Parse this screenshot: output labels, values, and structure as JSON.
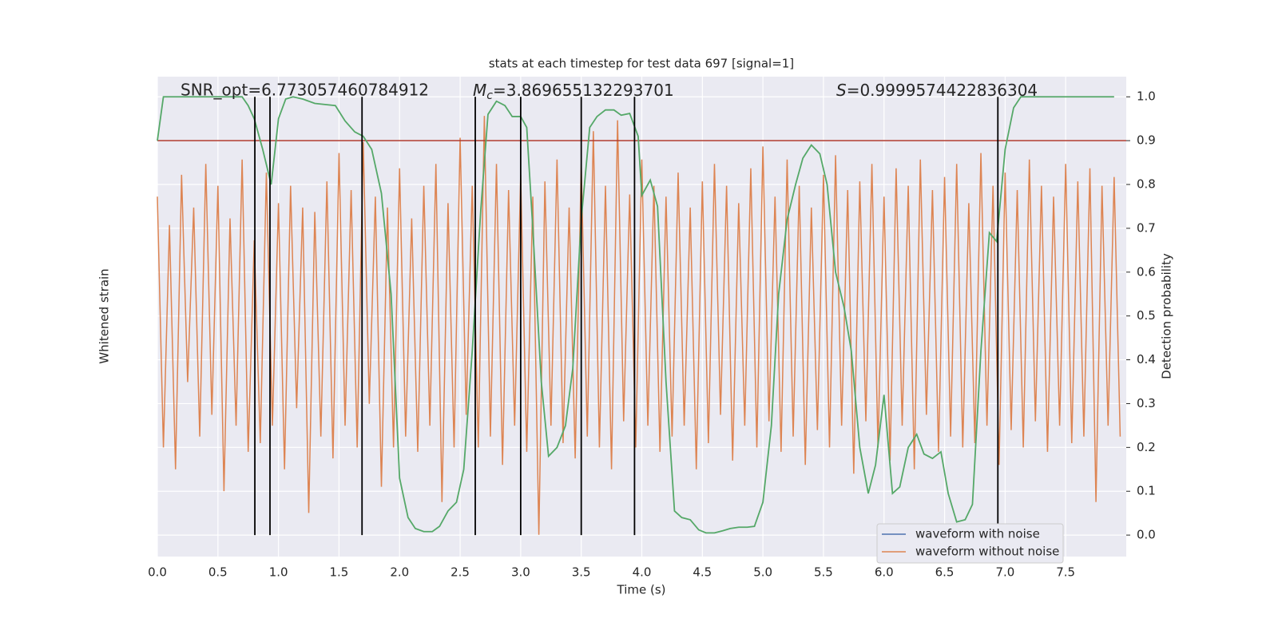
{
  "chart_data": {
    "type": "line",
    "title": "stats at each timestep for test data 697 [signal=1]",
    "x_label": "Time (s)",
    "y_label": "Whitened strain",
    "y2_label": "Detection probability",
    "annotations": {
      "snr": "SNR_opt=6.773057460784912",
      "mc": {
        "symbol": "M",
        "subscript": "c",
        "text": "=3.869655132293701"
      },
      "s": {
        "symbol": "S",
        "text": "=0.9999574422836304"
      }
    },
    "xlim": [
      0,
      8
    ],
    "xticks": [
      {
        "value": 0,
        "label": "0.0"
      },
      {
        "value": 0.5,
        "label": "0.5"
      },
      {
        "value": 1,
        "label": "1.0"
      },
      {
        "value": 1.5,
        "label": "1.5"
      },
      {
        "value": 2,
        "label": "2.0"
      },
      {
        "value": 2.5,
        "label": "2.5"
      },
      {
        "value": 3,
        "label": "3.0"
      },
      {
        "value": 3.5,
        "label": "3.5"
      },
      {
        "value": 4,
        "label": "4.0"
      },
      {
        "value": 4.5,
        "label": "4.5"
      },
      {
        "value": 5,
        "label": "5.0"
      },
      {
        "value": 5.5,
        "label": "5.5"
      },
      {
        "value": 6,
        "label": "6.0"
      },
      {
        "value": 6.5,
        "label": "6.5"
      },
      {
        "value": 7,
        "label": "7.0"
      },
      {
        "value": 7.5,
        "label": "7.5"
      }
    ],
    "ylim": [
      -1.1,
      1.1
    ],
    "y2lim": [
      -0.049,
      1.046
    ],
    "y2ticks": [
      {
        "value": 0,
        "label": "0.0"
      },
      {
        "value": 0.1,
        "label": "0.1"
      },
      {
        "value": 0.2,
        "label": "0.2"
      },
      {
        "value": 0.3,
        "label": "0.3"
      },
      {
        "value": 0.4,
        "label": "0.4"
      },
      {
        "value": 0.5,
        "label": "0.5"
      },
      {
        "value": 0.6,
        "label": "0.6"
      },
      {
        "value": 0.7,
        "label": "0.7"
      },
      {
        "value": 0.8,
        "label": "0.8"
      },
      {
        "value": 0.9,
        "label": "0.9"
      },
      {
        "value": 1,
        "label": "1.0"
      }
    ],
    "grid": true,
    "legend": "lower right",
    "series": [
      {
        "name": "waveform with noise",
        "color": "#4c72b0"
      },
      {
        "name": "waveform without noise",
        "color": "#dd8452",
        "x": [
          0,
          0.05,
          0.1,
          0.15,
          0.2,
          0.25,
          0.3,
          0.35,
          0.4,
          0.45,
          0.5,
          0.55,
          0.6,
          0.65,
          0.7,
          0.75,
          0.8,
          0.85,
          0.9,
          0.95,
          1,
          1.05,
          1.1,
          1.15,
          1.2,
          1.25,
          1.3,
          1.35,
          1.4,
          1.45,
          1.5,
          1.55,
          1.6,
          1.65,
          1.7,
          1.75,
          1.8,
          1.85,
          1.9,
          1.95,
          2,
          2.05,
          2.1,
          2.15,
          2.2,
          2.25,
          2.3,
          2.35,
          2.4,
          2.45,
          2.5,
          2.55,
          2.6,
          2.65,
          2.7,
          2.75,
          2.8,
          2.85,
          2.9,
          2.95,
          3,
          3.05,
          3.1,
          3.15,
          3.2,
          3.25,
          3.3,
          3.35,
          3.4,
          3.45,
          3.5,
          3.55,
          3.6,
          3.65,
          3.7,
          3.75,
          3.8,
          3.85,
          3.9,
          3.95,
          4,
          4.05,
          4.1,
          4.15,
          4.2,
          4.25,
          4.3,
          4.35,
          4.4,
          4.45,
          4.5,
          4.55,
          4.6,
          4.65,
          4.7,
          4.75,
          4.8,
          4.85,
          4.9,
          4.95,
          5,
          5.05,
          5.1,
          5.15,
          5.2,
          5.25,
          5.3,
          5.35,
          5.4,
          5.45,
          5.5,
          5.55,
          5.6,
          5.65,
          5.7,
          5.75,
          5.8,
          5.85,
          5.9,
          5.95,
          6,
          6.05,
          6.1,
          6.15,
          6.2,
          6.25,
          6.3,
          6.35,
          6.4,
          6.45,
          6.5,
          6.55,
          6.6,
          6.65,
          6.7,
          6.75,
          6.8,
          6.85,
          6.9,
          6.95,
          7,
          7.05,
          7.1,
          7.15,
          7.2,
          7.25,
          7.3,
          7.35,
          7.4,
          7.45,
          7.5,
          7.55,
          7.6,
          7.65,
          7.7,
          7.75,
          7.8,
          7.85,
          7.9,
          7.95
        ],
        "values": [
          0.55,
          -0.6,
          0.42,
          -0.7,
          0.65,
          -0.3,
          0.5,
          -0.55,
          0.7,
          -0.45,
          0.6,
          -0.8,
          0.45,
          -0.5,
          0.72,
          -0.62,
          0.35,
          -0.58,
          0.66,
          -0.5,
          0.52,
          -0.7,
          0.6,
          -0.42,
          0.5,
          -0.9,
          0.48,
          -0.55,
          0.62,
          -0.65,
          0.75,
          -0.5,
          0.58,
          -0.6,
          0.8,
          -0.4,
          0.55,
          -0.78,
          0.5,
          -0.6,
          0.68,
          -0.55,
          0.45,
          -0.62,
          0.6,
          -0.5,
          0.7,
          -0.85,
          0.52,
          -0.6,
          0.82,
          -0.45,
          0.6,
          -0.6,
          0.92,
          -0.55,
          0.7,
          -0.68,
          0.58,
          -0.5,
          0.65,
          -0.62,
          0.55,
          -1.0,
          0.62,
          -0.5,
          0.72,
          -0.58,
          0.5,
          -0.65,
          0.7,
          -0.55,
          0.85,
          -0.6,
          0.6,
          -0.7,
          0.9,
          -0.48,
          0.56,
          -0.6,
          0.72,
          -0.5,
          0.6,
          -0.62,
          0.55,
          -0.55,
          0.66,
          -0.5,
          0.5,
          -0.7,
          0.62,
          -0.58,
          0.7,
          -0.45,
          0.6,
          -0.66,
          0.52,
          -0.5,
          0.68,
          -0.6,
          0.78,
          -0.48,
          0.55,
          -0.62,
          0.72,
          -0.55,
          0.6,
          -0.68,
          0.5,
          -0.52,
          0.65,
          -0.6,
          0.74,
          -0.5,
          0.58,
          -0.72,
          0.62,
          -0.48,
          0.7,
          -0.6,
          0.55,
          -0.66,
          0.68,
          -0.5,
          0.6,
          -0.7,
          0.72,
          -0.45,
          0.58,
          -0.62,
          0.64,
          -0.55,
          0.7,
          -0.6,
          0.52,
          -0.58,
          0.75,
          -0.5,
          0.6,
          -0.68,
          0.66,
          -0.52,
          0.58,
          -0.6,
          0.72,
          -0.48,
          0.6,
          -0.62,
          0.55,
          -0.5,
          0.7,
          -0.58,
          0.62,
          -0.55,
          0.68,
          -0.85,
          0.6,
          -0.5,
          0.64,
          -0.55
        ]
      }
    ],
    "probability": {
      "color": "#55a868",
      "axis": "y2",
      "x": [
        0,
        0.05,
        0.1,
        0.2,
        0.3,
        0.4,
        0.5,
        0.6,
        0.7,
        0.75,
        0.8,
        0.87,
        0.94,
        1.0,
        1.06,
        1.12,
        1.2,
        1.3,
        1.4,
        1.47,
        1.55,
        1.63,
        1.7,
        1.77,
        1.85,
        1.93,
        2.0,
        2.07,
        2.13,
        2.2,
        2.27,
        2.33,
        2.4,
        2.47,
        2.53,
        2.6,
        2.67,
        2.73,
        2.8,
        2.87,
        2.93,
        3.0,
        3.05,
        3.1,
        3.17,
        3.23,
        3.3,
        3.37,
        3.43,
        3.5,
        3.57,
        3.63,
        3.7,
        3.77,
        3.83,
        3.9,
        3.97,
        4.0,
        4.07,
        4.13,
        4.2,
        4.27,
        4.33,
        4.4,
        4.47,
        4.53,
        4.6,
        4.67,
        4.73,
        4.8,
        4.87,
        4.93,
        5.0,
        5.07,
        5.13,
        5.2,
        5.27,
        5.33,
        5.4,
        5.47,
        5.53,
        5.6,
        5.67,
        5.73,
        5.8,
        5.87,
        5.93,
        6.0,
        6.07,
        6.13,
        6.2,
        6.27,
        6.33,
        6.4,
        6.47,
        6.53,
        6.6,
        6.67,
        6.73,
        6.8,
        6.87,
        6.93,
        7.0,
        7.07,
        7.13,
        7.2,
        7.9
      ],
      "values": [
        0.9,
        1.0,
        1.0,
        1.0,
        1.0,
        1.0,
        1.0,
        1.0,
        1.0,
        0.98,
        0.95,
        0.88,
        0.8,
        0.95,
        0.995,
        1.0,
        0.995,
        0.985,
        0.982,
        0.98,
        0.945,
        0.92,
        0.91,
        0.88,
        0.78,
        0.55,
        0.13,
        0.04,
        0.015,
        0.008,
        0.008,
        0.02,
        0.055,
        0.075,
        0.15,
        0.42,
        0.74,
        0.96,
        0.99,
        0.98,
        0.955,
        0.955,
        0.93,
        0.7,
        0.35,
        0.18,
        0.2,
        0.25,
        0.38,
        0.72,
        0.93,
        0.955,
        0.97,
        0.97,
        0.958,
        0.962,
        0.91,
        0.775,
        0.81,
        0.75,
        0.35,
        0.055,
        0.04,
        0.035,
        0.012,
        0.005,
        0.005,
        0.01,
        0.015,
        0.018,
        0.018,
        0.02,
        0.075,
        0.25,
        0.55,
        0.72,
        0.8,
        0.86,
        0.89,
        0.87,
        0.8,
        0.6,
        0.52,
        0.42,
        0.2,
        0.095,
        0.16,
        0.32,
        0.095,
        0.11,
        0.2,
        0.23,
        0.185,
        0.175,
        0.19,
        0.095,
        0.03,
        0.035,
        0.07,
        0.42,
        0.69,
        0.67,
        0.88,
        0.975,
        1.0,
        1.0,
        1.0
      ]
    },
    "threshold": {
      "value": 0.9,
      "color": "#b03a2e"
    },
    "vlines": {
      "color": "#000000",
      "span": [
        0,
        1
      ],
      "x": [
        0.805,
        0.93,
        1.69,
        2.625,
        3.0,
        3.5,
        3.94,
        6.94
      ]
    }
  }
}
